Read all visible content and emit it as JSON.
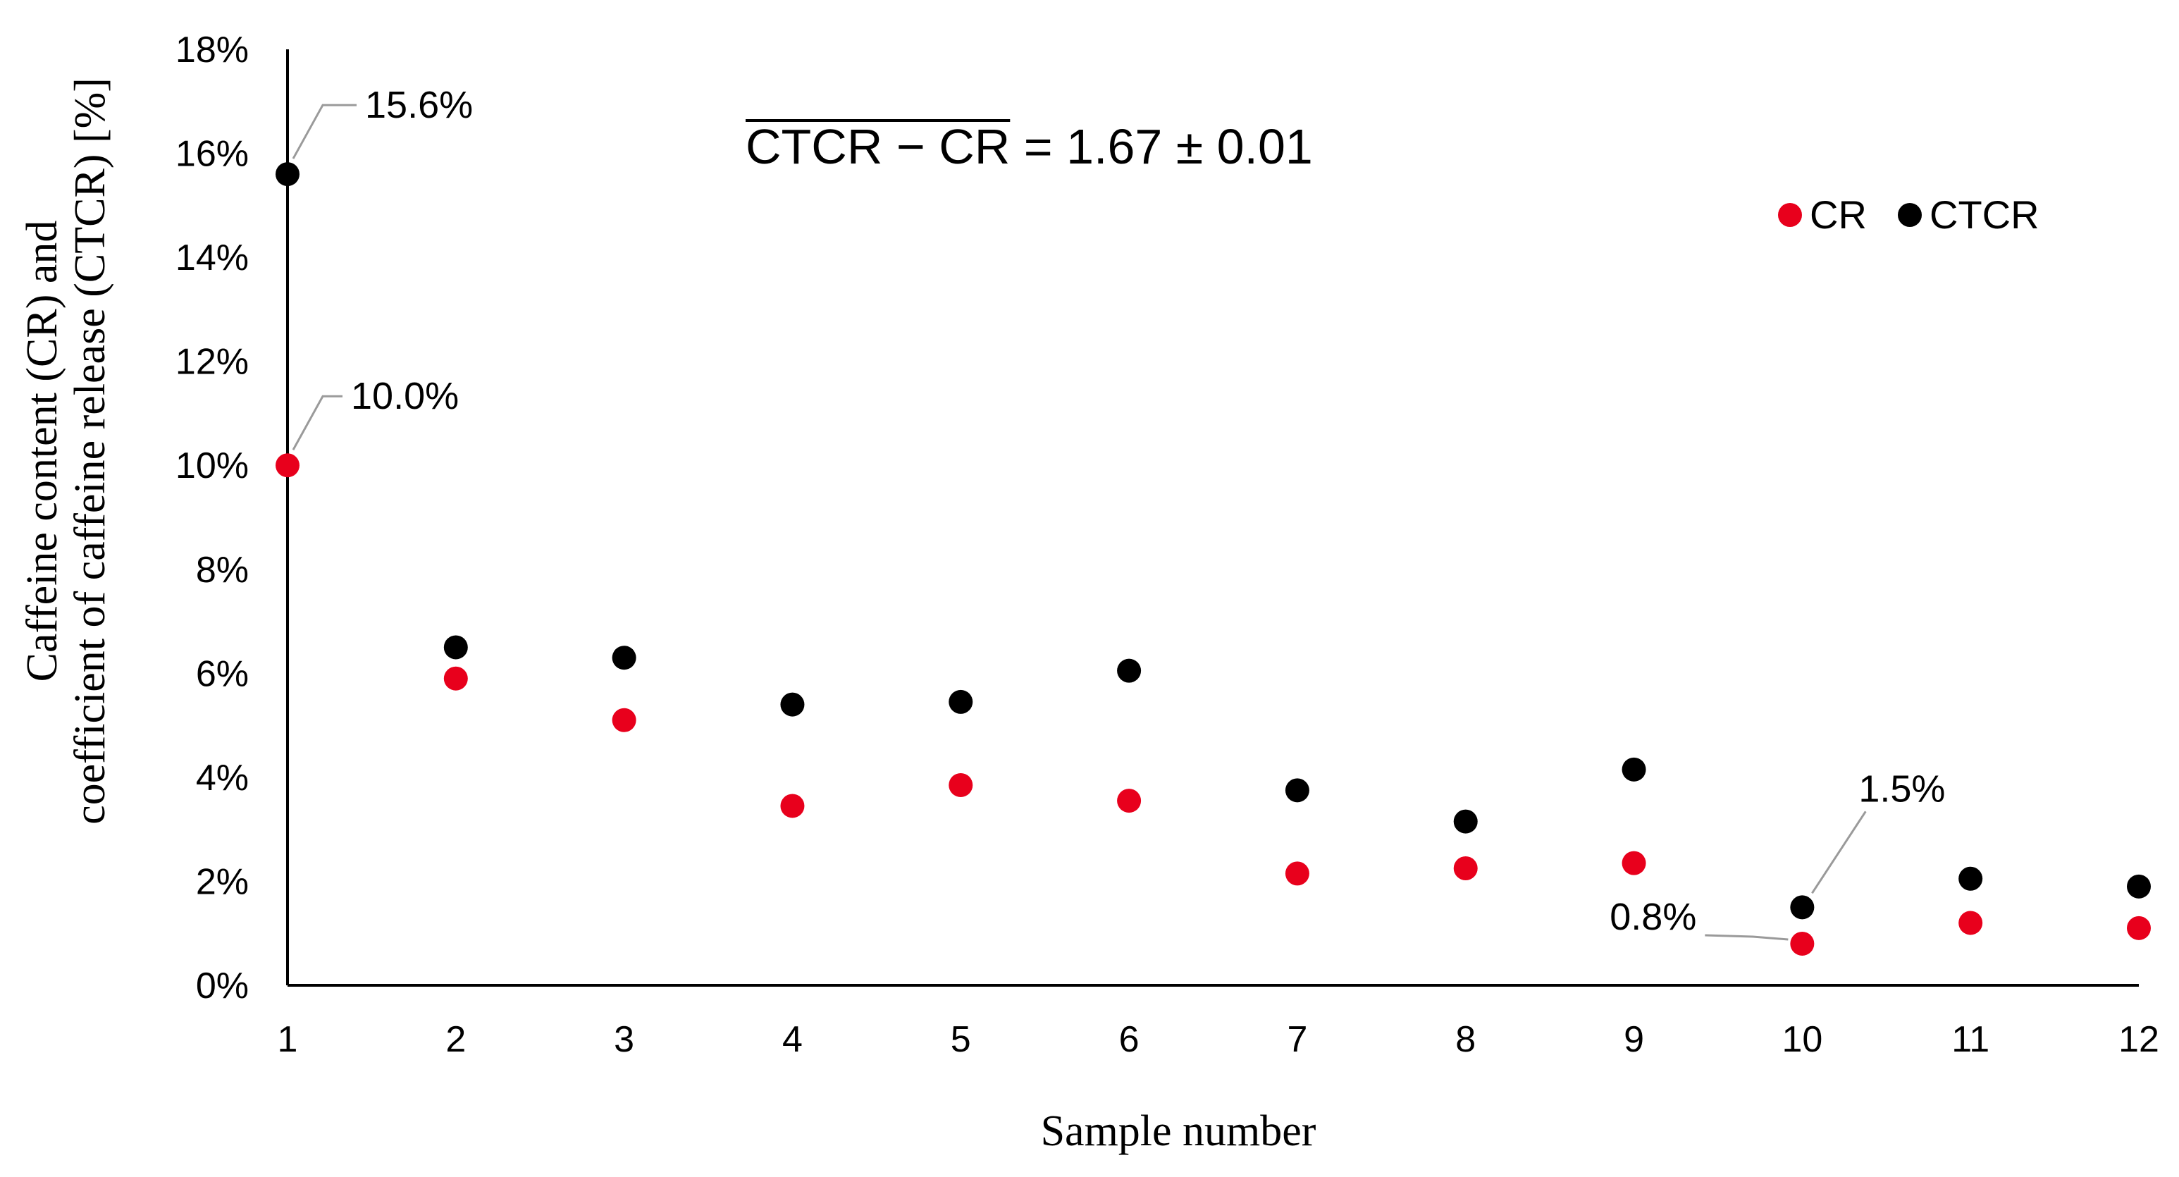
{
  "chart_data": {
    "type": "scatter",
    "title": "",
    "xlabel": "Sample number",
    "ylabel": [
      "Caffeine content (CR) and",
      "coefficient of caffeine release (CTCR) [%]"
    ],
    "x": [
      1,
      2,
      3,
      4,
      5,
      6,
      7,
      8,
      9,
      10,
      11,
      12
    ],
    "xticks": [
      "1",
      "2",
      "3",
      "4",
      "5",
      "6",
      "7",
      "8",
      "9",
      "10",
      "11",
      "12"
    ],
    "ylim": [
      0,
      18
    ],
    "yticks": [
      {
        "value": 0,
        "label": "0%"
      },
      {
        "value": 2,
        "label": "2%"
      },
      {
        "value": 4,
        "label": "4%"
      },
      {
        "value": 6,
        "label": "6%"
      },
      {
        "value": 8,
        "label": "8%"
      },
      {
        "value": 10,
        "label": "10%"
      },
      {
        "value": 12,
        "label": "12%"
      },
      {
        "value": 14,
        "label": "14%"
      },
      {
        "value": 16,
        "label": "16%"
      },
      {
        "value": 18,
        "label": "18%"
      }
    ],
    "grid": false,
    "legend_position": "top-right",
    "series": [
      {
        "name": "CR",
        "color": "#e8001c",
        "values": [
          10.0,
          5.9,
          5.1,
          3.45,
          3.85,
          3.55,
          2.15,
          2.25,
          2.35,
          0.8,
          1.2,
          1.1
        ]
      },
      {
        "name": "CTCR",
        "color": "#000000",
        "values": [
          15.6,
          6.5,
          6.3,
          5.4,
          5.45,
          6.05,
          3.75,
          3.15,
          4.15,
          1.5,
          2.05,
          1.9
        ]
      }
    ],
    "annotations": [
      {
        "series": "CTCR",
        "x": 1,
        "label": "15.6%"
      },
      {
        "series": "CR",
        "x": 1,
        "label": "10.0%"
      },
      {
        "series": "CTCR",
        "x": 10,
        "label": "1.5%"
      },
      {
        "series": "CR",
        "x": 10,
        "label": "0.8%"
      }
    ],
    "formula": {
      "overlined": "CTCR − CR",
      "rest": " = 1.67 ± 0.01"
    }
  }
}
